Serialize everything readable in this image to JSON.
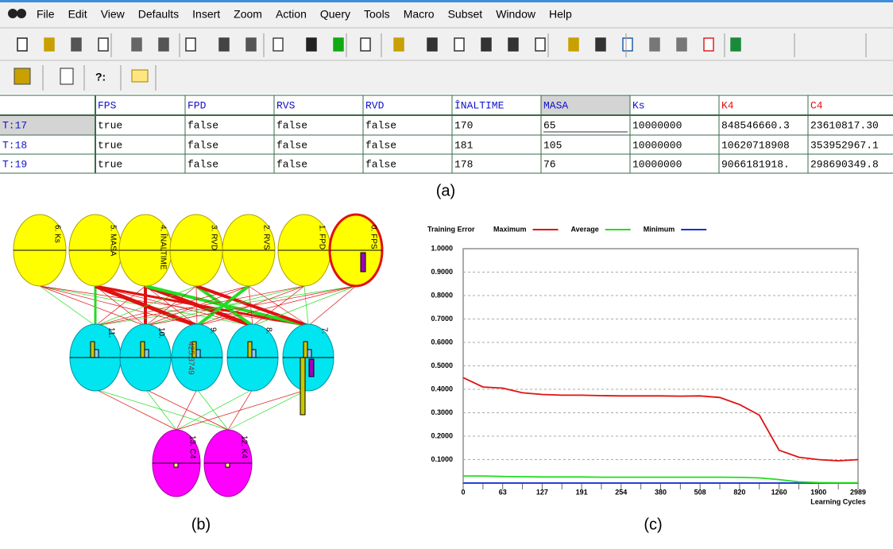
{
  "menu": [
    "File",
    "Edit",
    "View",
    "Defaults",
    "Insert",
    "Zoom",
    "Action",
    "Query",
    "Tools",
    "Macro",
    "Subset",
    "Window",
    "Help"
  ],
  "toolbar_text": [
    "?:"
  ],
  "table": {
    "columns": [
      "FPS",
      "FPD",
      "RVS",
      "RVD",
      "ÎNALTIME",
      "MASA",
      "Ks",
      "K4",
      "C4"
    ],
    "rows": [
      {
        "label": "T:17",
        "cells": [
          "true",
          "false",
          "false",
          "false",
          "170",
          "65",
          "10000000",
          "848546660.3",
          "23610817.30"
        ]
      },
      {
        "label": "T:18",
        "cells": [
          "true",
          "false",
          "false",
          "false",
          "181",
          "105",
          "10000000",
          "10620718908",
          "353952967.1"
        ]
      },
      {
        "label": "T:19",
        "cells": [
          "true",
          "false",
          "false",
          "false",
          "178",
          "76",
          "10000000",
          "9066181918.",
          "298690349.8"
        ]
      }
    ]
  },
  "captions": [
    "(a)",
    "(b)",
    "(c)"
  ],
  "network": {
    "input_nodes": [
      "6. Ks",
      "5. MASA",
      "4. ÎNALTIME",
      "3. RVD",
      "2. RVS",
      "1. FPD",
      "0. FPS"
    ],
    "hidden_nodes": [
      "11.",
      "10.",
      "9.",
      "8.",
      "7."
    ],
    "output_nodes": [
      "13. C4",
      "12. K4"
    ],
    "annotation": "425.3749"
  },
  "chart_data": {
    "type": "line",
    "title": "Training Error",
    "x_label": "Learning Cycles",
    "categories": [
      0,
      null,
      63,
      null,
      127,
      null,
      191,
      null,
      254,
      null,
      380,
      null,
      508,
      null,
      820,
      null,
      1260,
      null,
      1900,
      null,
      2989
    ],
    "series": [
      {
        "name": "Maximum",
        "color": "#e01010",
        "values": [
          0.45,
          0.41,
          0.405,
          0.385,
          0.378,
          0.375,
          0.375,
          0.373,
          0.372,
          0.372,
          0.372,
          0.371,
          0.372,
          0.365,
          0.335,
          0.29,
          0.14,
          0.11,
          0.1,
          0.095,
          0.1
        ]
      },
      {
        "name": "Average",
        "color": "#22dd22",
        "values": [
          0.03,
          0.03,
          0.028,
          0.027,
          0.026,
          0.026,
          0.026,
          0.025,
          0.025,
          0.025,
          0.025,
          0.025,
          0.025,
          0.025,
          0.024,
          0.022,
          0.015,
          0.005,
          0.002,
          0.001,
          0.001
        ]
      },
      {
        "name": "Minimum",
        "color": "#1030dd",
        "values": [
          0,
          0,
          0,
          0,
          0,
          0,
          0,
          0,
          0,
          0,
          0,
          0,
          0,
          0,
          0,
          0,
          0,
          0,
          0,
          0,
          0
        ]
      }
    ],
    "ylim": [
      0,
      1
    ],
    "yticks": [
      {
        "value": 0.1,
        "label": "0.1000"
      },
      {
        "value": 0.2,
        "label": "0.2000"
      },
      {
        "value": 0.3,
        "label": "0.3000"
      },
      {
        "value": 0.4,
        "label": "0.4000"
      },
      {
        "value": 0.5,
        "label": "0.5000"
      },
      {
        "value": 0.6,
        "label": "0.6000"
      },
      {
        "value": 0.7,
        "label": "0.7000"
      },
      {
        "value": 0.8,
        "label": "0.8000"
      },
      {
        "value": 0.9,
        "label": "0.9000"
      },
      {
        "value": 1,
        "label": "1.0000"
      }
    ],
    "grid": true
  }
}
